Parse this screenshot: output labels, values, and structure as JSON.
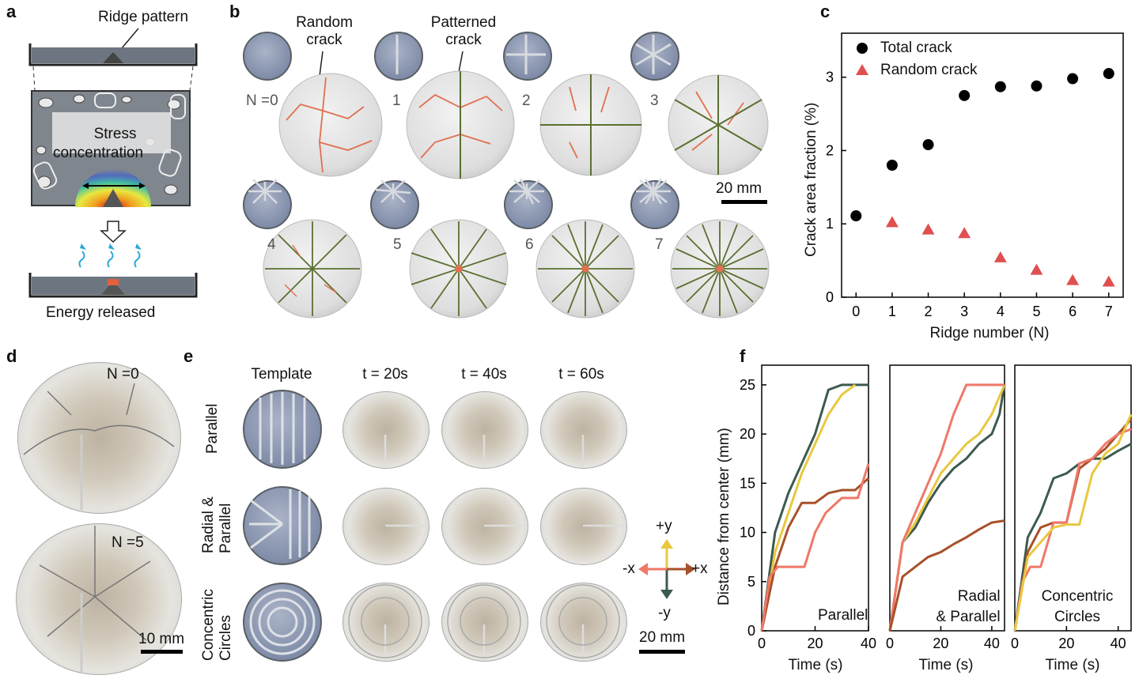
{
  "panel_a": {
    "letter": "a",
    "ridge_pattern": "Ridge pattern",
    "stress_line1": "Stress",
    "stress_line2": "concentration",
    "energy_released": "Energy released"
  },
  "panel_b": {
    "letter": "b",
    "random_crack_line1": "Random",
    "random_crack_line2": "crack",
    "patterned_crack_line1": "Patterned",
    "patterned_crack_line2": "crack",
    "samples": [
      "N =0",
      "1",
      "2",
      "3",
      "4",
      "5",
      "6",
      "7"
    ],
    "scalebar": "20 mm"
  },
  "panel_c": {
    "letter": "c",
    "chart_data": {
      "type": "scatter",
      "xlabel": "Ridge number (N)",
      "ylabel": "Crack area fraction (%)",
      "xlim": [
        -0.4,
        7.4
      ],
      "ylim": [
        0,
        3.6
      ],
      "x_ticks": [
        0,
        1,
        2,
        3,
        4,
        5,
        6,
        7
      ],
      "y_ticks": [
        0,
        1,
        2,
        3
      ],
      "legend_position": "top-left",
      "series": [
        {
          "name": "Total crack",
          "marker": "circle",
          "color": "#000000",
          "x": [
            0,
            1,
            2,
            3,
            4,
            5,
            6,
            7
          ],
          "y": [
            1.11,
            1.8,
            2.08,
            2.75,
            2.87,
            2.88,
            2.98,
            3.05
          ]
        },
        {
          "name": "Random crack",
          "marker": "triangle",
          "color": "#e05050",
          "x": [
            0,
            1,
            2,
            3,
            4,
            5,
            6,
            7
          ],
          "y": [
            null,
            1.02,
            0.92,
            0.87,
            0.54,
            0.37,
            0.23,
            0.21
          ]
        }
      ]
    }
  },
  "panel_d": {
    "letter": "d",
    "top_label": "N =0",
    "bottom_label": "N =5",
    "scalebar": "10 mm"
  },
  "panel_e": {
    "letter": "e",
    "columns": [
      "Template",
      "t = 20s",
      "t = 40s",
      "t = 60s"
    ],
    "rows": [
      {
        "line1": "Parallel",
        "line2": ""
      },
      {
        "line1": "Radial &",
        "line2": "Parallel"
      },
      {
        "line1": "Concentric",
        "line2": "Circles"
      }
    ],
    "axes": {
      "up": "+y",
      "down": "-y",
      "left": "-x",
      "right": "+x"
    },
    "scalebar": "20 mm"
  },
  "panel_f": {
    "letter": "f",
    "chart_data": [
      {
        "type": "line",
        "xlabel": "Time (s)",
        "ylabel": "Distance from center (mm)",
        "xlim": [
          0,
          40
        ],
        "ylim": [
          0,
          27
        ],
        "x_ticks": [
          0,
          20,
          40
        ],
        "y_ticks": [
          0,
          5,
          10,
          15,
          20,
          25
        ],
        "annotation": "Parallel",
        "series": [
          {
            "color": "#3d5a4e",
            "x": [
              0,
              5,
              10,
              15,
              20,
              25,
              30,
              35,
              40
            ],
            "y": [
              0,
              10,
              14,
              17,
              20,
              24.5,
              25,
              25,
              25
            ]
          },
          {
            "color": "#e8c840",
            "x": [
              0,
              5,
              10,
              15,
              20,
              25,
              30,
              35
            ],
            "y": [
              0,
              8,
              12,
              16,
              19,
              22,
              24,
              25
            ]
          },
          {
            "color": "#a8502a",
            "x": [
              0,
              5,
              10,
              15,
              20,
              25,
              30,
              35,
              40
            ],
            "y": [
              0,
              6.5,
              10.5,
              13,
              13,
              14,
              14.3,
              14.3,
              15.5
            ]
          },
          {
            "color": "#f07868",
            "x": [
              0,
              3,
              6,
              10,
              16,
              20,
              24,
              30,
              36,
              40
            ],
            "y": [
              0,
              5.5,
              6.5,
              6.5,
              6.5,
              10,
              12,
              13.5,
              13.5,
              17
            ]
          }
        ]
      },
      {
        "type": "line",
        "xlabel": "Time (s)",
        "xlim": [
          0,
          45
        ],
        "ylim": [
          0,
          27
        ],
        "x_ticks": [
          0,
          20,
          40
        ],
        "annotation_line1": "Radial",
        "annotation_line2": "& Parallel",
        "series": [
          {
            "color": "#3d5a4e",
            "x": [
              0,
              5,
              10,
              15,
              20,
              25,
              30,
              35,
              40,
              43,
              45
            ],
            "y": [
              0,
              9,
              10.5,
              13,
              15,
              16.5,
              17.5,
              19,
              20,
              22,
              25
            ]
          },
          {
            "color": "#e8c840",
            "x": [
              0,
              5,
              10,
              15,
              20,
              25,
              30,
              35,
              40,
              45
            ],
            "y": [
              0,
              9,
              11,
              13.5,
              16,
              17.5,
              19,
              20,
              22,
              25
            ]
          },
          {
            "color": "#f07868",
            "x": [
              0,
              5,
              10,
              15,
              20,
              25,
              30,
              35,
              40,
              45
            ],
            "y": [
              0,
              9,
              12,
              15,
              18,
              22,
              25,
              25,
              25,
              25
            ]
          },
          {
            "color": "#a8502a",
            "x": [
              0,
              5,
              10,
              15,
              20,
              25,
              30,
              35,
              40,
              45
            ],
            "y": [
              0,
              5.5,
              6.5,
              7.5,
              8,
              8.8,
              9.5,
              10.3,
              11,
              11.2
            ]
          }
        ]
      },
      {
        "type": "line",
        "xlabel": "Time (s)",
        "xlim": [
          0,
          45
        ],
        "ylim": [
          0,
          27
        ],
        "x_ticks": [
          0,
          20,
          40
        ],
        "annotation_line1": "Concentric",
        "annotation_line2": "Circles",
        "series": [
          {
            "color": "#3d5a4e",
            "x": [
              0,
              5,
              10,
              15,
              20,
              25,
              30,
              35,
              40,
              45
            ],
            "y": [
              0,
              9.5,
              12,
              15.5,
              16,
              17,
              17.5,
              17.5,
              18.3,
              19
            ]
          },
          {
            "color": "#a8502a",
            "x": [
              0,
              5,
              10,
              15,
              20,
              25,
              30,
              35,
              40,
              45
            ],
            "y": [
              0,
              8,
              10.5,
              11,
              11,
              16.5,
              17.5,
              18.5,
              20,
              21.5
            ]
          },
          {
            "color": "#f07868",
            "x": [
              0,
              3,
              6,
              10,
              15,
              20,
              25,
              30,
              35,
              40,
              45
            ],
            "y": [
              0,
              5,
              6.5,
              6.5,
              11,
              11,
              17,
              17.5,
              19,
              20,
              20.5
            ]
          },
          {
            "color": "#e8c840",
            "x": [
              0,
              5,
              10,
              15,
              20,
              25,
              30,
              35,
              40,
              45
            ],
            "y": [
              0,
              7.5,
              9,
              10.5,
              10.8,
              10.8,
              16,
              18,
              19,
              22
            ]
          }
        ]
      }
    ]
  }
}
